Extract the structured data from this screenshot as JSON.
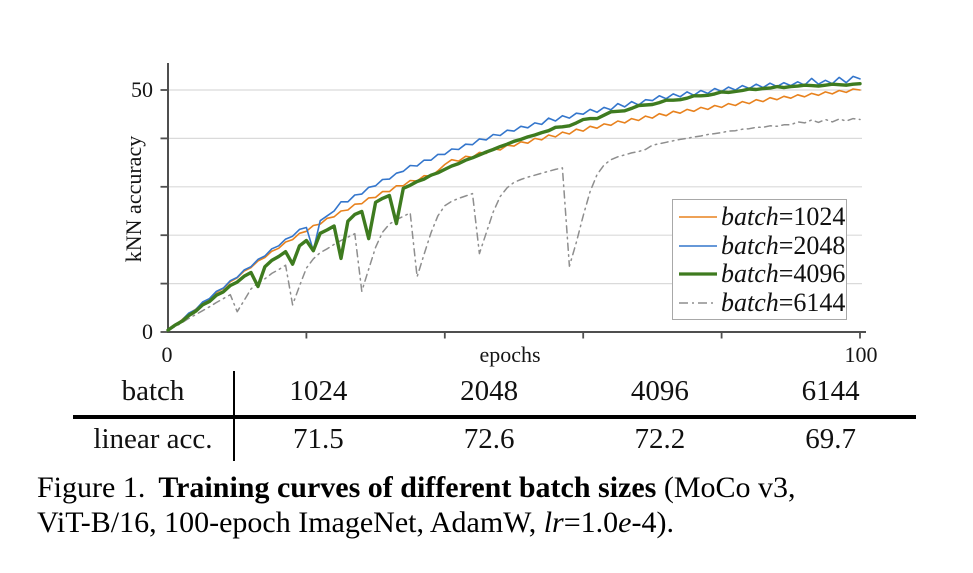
{
  "axis": {
    "ylabel": "kNN accuracy",
    "xlabel": "epochs",
    "ytick_top": "50",
    "ytick_zero": "0",
    "xtick_zero": "0",
    "xtick_max": "100"
  },
  "table": {
    "row1_label": "batch",
    "row2_label": "linear acc.",
    "columns": [
      "1024",
      "2048",
      "4096",
      "6144"
    ],
    "row2_values": [
      "71.5",
      "72.6",
      "72.2",
      "69.7"
    ]
  },
  "caption": {
    "figure_label": "Figure 1.",
    "title_bold": "Training curves of different batch sizes",
    "line1_tail": "(MoCo v3,",
    "line2_head": "ViT-B/16, 100-epoch ImageNet, AdamW,",
    "lr_var": "lr",
    "lr_eq": "=1.0",
    "e_var": "e",
    "tail": "-4)."
  },
  "chart_data": {
    "type": "line",
    "title": "",
    "xlabel": "epochs",
    "ylabel": "kNN accuracy",
    "xlim": [
      0,
      100
    ],
    "ylim": [
      0,
      55
    ],
    "x_start": 0,
    "x_step": 1,
    "grid": "horizontal, every 10",
    "legend_position": "lower right",
    "axis_color": "#4f4f4f",
    "grid_color": "#dadada",
    "series": [
      {
        "id": "b1024",
        "name": "batch=1024",
        "legend_word": "batch",
        "legend_value": "=1024",
        "color": "#E8821E",
        "line_style": "solid",
        "line_width": 1.6,
        "values": [
          0.4,
          1.4,
          2.5,
          3.8,
          4.7,
          6.0,
          6.8,
          8.2,
          9.0,
          10.4,
          11.2,
          12.6,
          13.3,
          14.7,
          15.4,
          16.7,
          17.3,
          18.6,
          19.1,
          20.4,
          20.8,
          22.0,
          22.3,
          23.5,
          23.8,
          25.0,
          25.2,
          26.4,
          26.5,
          27.7,
          27.8,
          29.0,
          29.0,
          30.2,
          30.2,
          31.3,
          31.2,
          32.3,
          32.2,
          33.3,
          34.6,
          35.6,
          35.3,
          36.3,
          36.1,
          37.1,
          36.9,
          37.9,
          37.6,
          38.6,
          38.4,
          39.3,
          39.0,
          40.0,
          39.7,
          40.7,
          40.3,
          41.3,
          40.9,
          41.9,
          41.5,
          42.5,
          42.1,
          43.0,
          42.7,
          43.6,
          43.2,
          44.1,
          43.7,
          44.6,
          44.2,
          45.1,
          44.7,
          45.6,
          45.2,
          46.0,
          45.6,
          46.4,
          46.0,
          46.8,
          46.4,
          47.2,
          46.8,
          47.6,
          47.2,
          48.0,
          47.6,
          48.4,
          48.0,
          48.7,
          48.3,
          49.0,
          48.6,
          49.3,
          48.9,
          49.6,
          49.2,
          49.9,
          49.5,
          50.2,
          50.0
        ]
      },
      {
        "id": "b2048",
        "name": "batch=2048",
        "legend_word": "batch",
        "legend_value": "=2048",
        "color": "#3476CC",
        "line_style": "solid",
        "line_width": 1.6,
        "values": [
          0.3,
          1.5,
          2.4,
          3.9,
          4.6,
          6.2,
          6.9,
          8.4,
          9.1,
          10.6,
          11.3,
          12.8,
          13.5,
          15.0,
          15.7,
          17.2,
          17.8,
          19.2,
          19.8,
          21.2,
          21.6,
          16.8,
          23.0,
          24.0,
          25.0,
          26.9,
          26.9,
          28.3,
          28.5,
          29.9,
          30.2,
          31.5,
          31.6,
          32.8,
          33.2,
          34.4,
          34.3,
          35.5,
          35.5,
          36.7,
          36.7,
          37.8,
          37.7,
          38.8,
          38.7,
          39.9,
          39.7,
          40.8,
          40.6,
          41.7,
          41.5,
          42.5,
          42.2,
          43.2,
          42.9,
          44.2,
          43.6,
          44.7,
          44.2,
          45.2,
          45.0,
          46.0,
          45.4,
          46.4,
          45.9,
          47.2,
          46.5,
          47.6,
          46.9,
          48.0,
          47.8,
          48.8,
          48.2,
          49.2,
          48.6,
          49.6,
          48.9,
          49.9,
          49.3,
          50.3,
          49.7,
          50.6,
          50.0,
          50.9,
          50.3,
          51.2,
          50.5,
          51.4,
          50.7,
          51.5,
          50.9,
          51.7,
          51.0,
          52.4,
          51.2,
          52.0,
          51.3,
          52.6,
          51.5,
          52.8,
          52.3
        ]
      },
      {
        "id": "b4096",
        "name": "batch=4096",
        "legend_word": "batch",
        "legend_value": "=4096",
        "color": "#3E7B1F",
        "line_style": "solid",
        "line_width": 3.4,
        "values": [
          0.4,
          1.4,
          2.2,
          3.4,
          4.3,
          5.6,
          6.3,
          7.6,
          8.3,
          9.6,
          10.3,
          11.5,
          12.3,
          9.4,
          13.5,
          14.8,
          15.6,
          16.6,
          14.0,
          17.8,
          18.9,
          16.8,
          20.4,
          21.1,
          21.9,
          15.2,
          22.9,
          24.3,
          24.9,
          19.3,
          26.8,
          27.6,
          28.2,
          22.4,
          29.7,
          30.3,
          31.1,
          31.6,
          32.4,
          32.9,
          33.6,
          34.3,
          34.8,
          35.5,
          36.0,
          36.6,
          37.2,
          37.7,
          38.3,
          38.8,
          39.4,
          39.8,
          40.3,
          40.7,
          41.2,
          41.6,
          42.3,
          42.4,
          42.6,
          43.2,
          43.9,
          44.1,
          44.1,
          44.8,
          45.5,
          45.6,
          45.7,
          46.2,
          46.8,
          46.9,
          47.0,
          47.4,
          47.9,
          47.9,
          48.0,
          48.3,
          48.8,
          48.8,
          48.9,
          49.2,
          49.6,
          49.5,
          49.7,
          49.9,
          50.2,
          50.1,
          50.3,
          50.4,
          50.7,
          50.5,
          50.7,
          50.8,
          51.0,
          50.9,
          50.8,
          51.0,
          51.2,
          51.1,
          51.0,
          51.2,
          51.3
        ]
      },
      {
        "id": "b6144",
        "name": "batch=6144",
        "legend_word": "batch",
        "legend_value": "=6144",
        "color": "#8E8E8E",
        "line_style": "dashdot",
        "line_width": 1.5,
        "values": [
          0.3,
          1.1,
          1.9,
          2.8,
          3.6,
          4.4,
          5.2,
          6.1,
          6.9,
          7.7,
          4.2,
          6.5,
          8.9,
          10.1,
          11.0,
          12.1,
          12.9,
          13.8,
          5.6,
          9.5,
          13.2,
          15.1,
          16.4,
          17.2,
          18.1,
          18.9,
          19.6,
          20.3,
          8.4,
          13.0,
          17.5,
          20.6,
          22.3,
          23.2,
          23.9,
          24.6,
          11.4,
          16.0,
          20.5,
          24.0,
          26.1,
          27.0,
          27.6,
          28.1,
          28.6,
          16.2,
          20.5,
          24.8,
          28.0,
          29.8,
          30.9,
          31.5,
          32.0,
          32.4,
          32.8,
          33.2,
          33.6,
          33.9,
          13.6,
          18.5,
          24.0,
          29.0,
          32.5,
          34.5,
          35.6,
          36.2,
          36.6,
          37.0,
          37.3,
          37.7,
          38.6,
          38.9,
          39.2,
          39.5,
          39.8,
          40.0,
          40.3,
          40.5,
          40.8,
          41.0,
          41.2,
          41.5,
          41.6,
          41.9,
          42.0,
          42.3,
          42.3,
          42.6,
          42.5,
          42.8,
          42.8,
          43.4,
          43.2,
          43.8,
          43.3,
          43.9,
          43.4,
          44.0,
          43.6,
          44.1,
          43.9
        ]
      }
    ]
  }
}
